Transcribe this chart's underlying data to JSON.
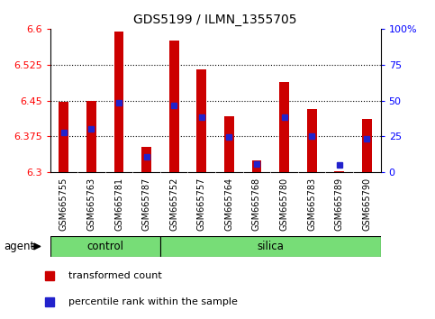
{
  "title": "GDS5199 / ILMN_1355705",
  "samples": [
    "GSM665755",
    "GSM665763",
    "GSM665781",
    "GSM665787",
    "GSM665752",
    "GSM665757",
    "GSM665764",
    "GSM665768",
    "GSM665780",
    "GSM665783",
    "GSM665789",
    "GSM665790"
  ],
  "groups": [
    "control",
    "control",
    "control",
    "control",
    "silica",
    "silica",
    "silica",
    "silica",
    "silica",
    "silica",
    "silica",
    "silica"
  ],
  "transformed_count": [
    6.448,
    6.45,
    6.595,
    6.353,
    6.575,
    6.515,
    6.418,
    6.325,
    6.488,
    6.433,
    6.302,
    6.412
  ],
  "percentile_rank": [
    6.383,
    6.39,
    6.445,
    6.332,
    6.44,
    6.415,
    6.373,
    6.318,
    6.415,
    6.375,
    6.315,
    6.37
  ],
  "ymin": 6.3,
  "ymax": 6.6,
  "bar_color": "#cc0000",
  "marker_color": "#2222cc",
  "control_color": "#77dd77",
  "silica_color": "#77dd77",
  "xlabels_bg": "#cccccc",
  "agent_label": "agent",
  "legend_red": "transformed count",
  "legend_blue": "percentile rank within the sample",
  "right_tick_percents": [
    0,
    25,
    50,
    75,
    100
  ],
  "right_tick_labels": [
    "0",
    "25",
    "50",
    "75",
    "100%"
  ],
  "left_ticks": [
    6.3,
    6.375,
    6.45,
    6.525,
    6.6
  ],
  "dotted_levels": [
    6.375,
    6.45,
    6.525
  ],
  "n_control": 4,
  "n_silica": 8
}
